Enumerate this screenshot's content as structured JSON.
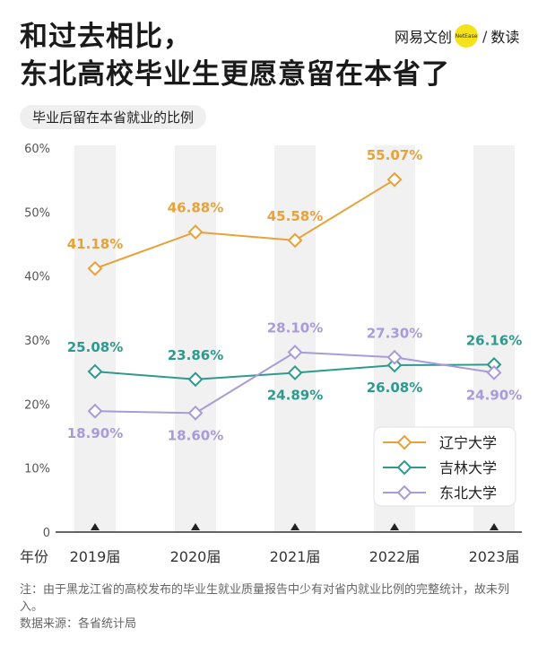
{
  "header": {
    "title_line1": "和过去相比，",
    "title_line2": "东北高校毕业生更愿意留在本省了",
    "brand_name": "网易文创",
    "brand_badge": "NetEase",
    "brand_separator": "/",
    "brand_channel": "数读"
  },
  "subtitle": "毕业后留在本省就业的比例",
  "notes": {
    "line1": "注：由于黑龙江省的高校发布的毕业生就业质量报告中少有对省内就业比例的完整统计，故未列入。",
    "line2": "数据来源：各省统计局"
  },
  "chart_data": {
    "type": "line",
    "title": "毕业后留在本省就业的比例",
    "xlabel": "年份",
    "ylabel": "",
    "categories": [
      "2019届",
      "2020届",
      "2021届",
      "2022届",
      "2023届"
    ],
    "ylim": [
      0,
      60
    ],
    "yticks": [
      "0",
      "10%",
      "20%",
      "30%",
      "40%",
      "50%",
      "60%"
    ],
    "grid": "vertical bands",
    "legend_position": "right",
    "series": [
      {
        "name": "辽宁大学",
        "color": "#E8A23A",
        "values": [
          41.18,
          46.88,
          45.58,
          55.07,
          null
        ],
        "labels": [
          "41.18%",
          "46.88%",
          "45.58%",
          "55.07%",
          ""
        ]
      },
      {
        "name": "吉林大学",
        "color": "#2E9A8E",
        "values": [
          25.08,
          23.86,
          24.89,
          26.08,
          26.16
        ],
        "labels": [
          "25.08%",
          "23.86%",
          "24.89%",
          "26.08%",
          "26.16%"
        ]
      },
      {
        "name": "东北大学",
        "color": "#A99BD8",
        "values": [
          18.9,
          18.6,
          28.1,
          27.3,
          24.9
        ],
        "labels": [
          "18.90%",
          "18.60%",
          "28.10%",
          "27.30%",
          "24.90%"
        ]
      }
    ]
  }
}
